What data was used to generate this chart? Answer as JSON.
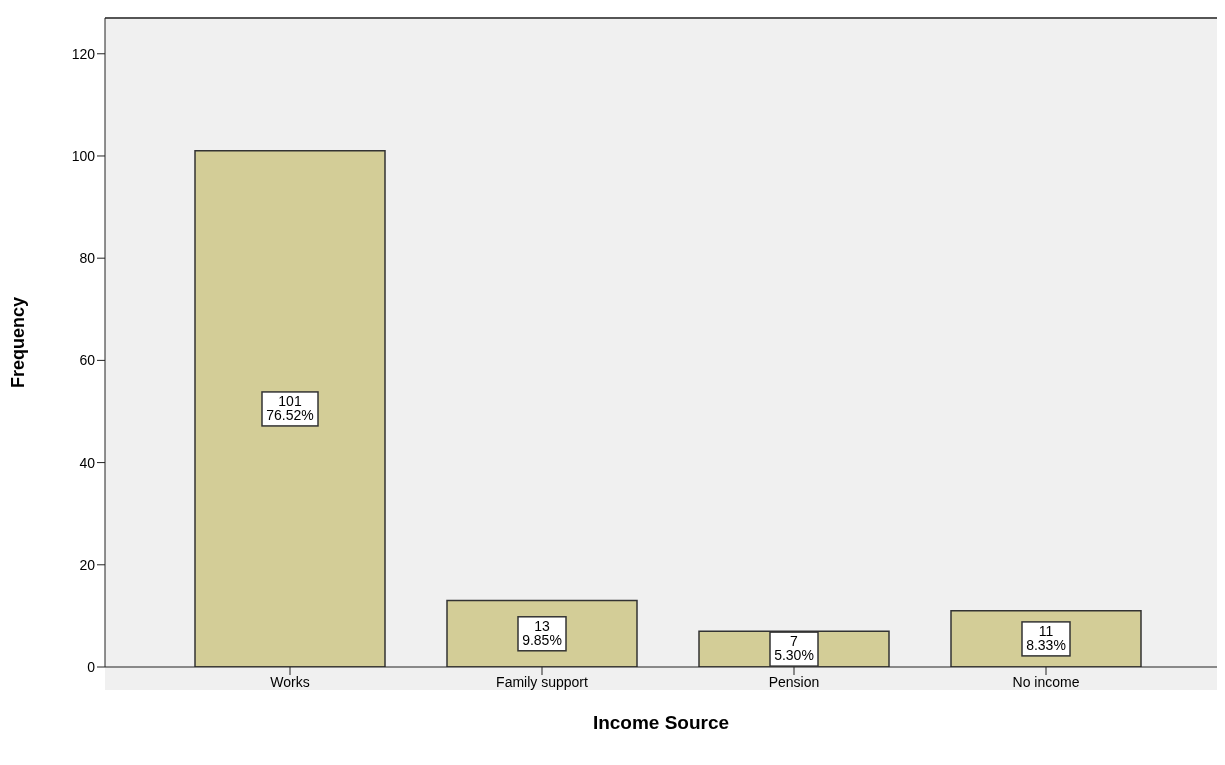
{
  "chart_data": {
    "type": "bar",
    "xlabel": "Income Source",
    "ylabel": "Frequency",
    "categories": [
      "Works",
      "Family support",
      "Pension",
      "No income"
    ],
    "values": [
      101,
      13,
      7,
      11
    ],
    "value_labels": [
      "101\n76.52%",
      "13\n9.85%",
      "7\n5.30%",
      "11\n8.33%"
    ],
    "color": "#d3cd97",
    "ylim": [
      0,
      127
    ],
    "yticks": [
      0,
      20,
      40,
      60,
      80,
      100,
      120
    ],
    "grid": false,
    "legend": false
  }
}
